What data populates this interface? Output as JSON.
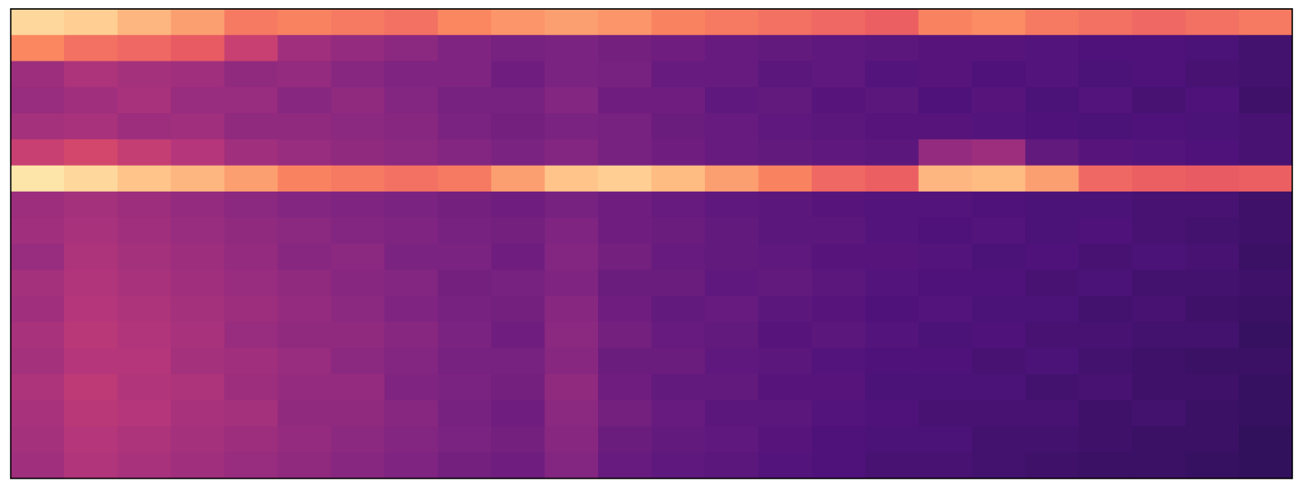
{
  "chart_data": {
    "type": "heatmap",
    "colormap": "magma",
    "zlim": [
      0,
      1
    ],
    "values": [
      [
        0.92,
        0.9,
        0.85,
        0.8,
        0.72,
        0.74,
        0.72,
        0.7,
        0.75,
        0.78,
        0.8,
        0.78,
        0.74,
        0.72,
        0.7,
        0.68,
        0.66,
        0.74,
        0.76,
        0.72,
        0.7,
        0.68,
        0.7,
        0.72
      ],
      [
        0.75,
        0.7,
        0.68,
        0.65,
        0.55,
        0.45,
        0.42,
        0.4,
        0.37,
        0.35,
        0.36,
        0.34,
        0.33,
        0.31,
        0.3,
        0.29,
        0.28,
        0.27,
        0.27,
        0.26,
        0.25,
        0.25,
        0.24,
        0.22
      ],
      [
        0.44,
        0.48,
        0.46,
        0.45,
        0.41,
        0.42,
        0.39,
        0.37,
        0.37,
        0.33,
        0.36,
        0.35,
        0.31,
        0.31,
        0.28,
        0.29,
        0.26,
        0.27,
        0.25,
        0.26,
        0.24,
        0.25,
        0.23,
        0.22
      ],
      [
        0.43,
        0.45,
        0.47,
        0.43,
        0.43,
        0.39,
        0.41,
        0.38,
        0.35,
        0.35,
        0.38,
        0.33,
        0.33,
        0.29,
        0.3,
        0.27,
        0.28,
        0.25,
        0.27,
        0.24,
        0.26,
        0.23,
        0.25,
        0.21
      ],
      [
        0.46,
        0.47,
        0.44,
        0.45,
        0.41,
        0.41,
        0.4,
        0.39,
        0.36,
        0.34,
        0.36,
        0.35,
        0.32,
        0.31,
        0.29,
        0.28,
        0.27,
        0.27,
        0.26,
        0.25,
        0.24,
        0.25,
        0.24,
        0.23
      ],
      [
        0.55,
        0.58,
        0.54,
        0.5,
        0.45,
        0.43,
        0.41,
        0.4,
        0.38,
        0.36,
        0.38,
        0.35,
        0.33,
        0.31,
        0.3,
        0.29,
        0.28,
        0.42,
        0.44,
        0.3,
        0.27,
        0.26,
        0.25,
        0.23
      ],
      [
        0.95,
        0.92,
        0.88,
        0.85,
        0.8,
        0.74,
        0.72,
        0.7,
        0.72,
        0.8,
        0.88,
        0.9,
        0.86,
        0.8,
        0.74,
        0.68,
        0.66,
        0.85,
        0.86,
        0.8,
        0.68,
        0.66,
        0.65,
        0.66
      ],
      [
        0.44,
        0.46,
        0.44,
        0.42,
        0.4,
        0.38,
        0.37,
        0.36,
        0.34,
        0.33,
        0.35,
        0.33,
        0.31,
        0.29,
        0.28,
        0.27,
        0.26,
        0.26,
        0.25,
        0.24,
        0.24,
        0.23,
        0.23,
        0.21
      ],
      [
        0.45,
        0.47,
        0.45,
        0.43,
        0.41,
        0.4,
        0.38,
        0.37,
        0.35,
        0.34,
        0.37,
        0.33,
        0.32,
        0.3,
        0.28,
        0.28,
        0.26,
        0.25,
        0.26,
        0.24,
        0.25,
        0.23,
        0.22,
        0.21
      ],
      [
        0.43,
        0.48,
        0.46,
        0.44,
        0.42,
        0.39,
        0.4,
        0.36,
        0.36,
        0.33,
        0.38,
        0.34,
        0.31,
        0.3,
        0.29,
        0.27,
        0.27,
        0.26,
        0.24,
        0.25,
        0.23,
        0.24,
        0.23,
        0.2
      ],
      [
        0.46,
        0.49,
        0.47,
        0.45,
        0.43,
        0.41,
        0.39,
        0.38,
        0.34,
        0.35,
        0.37,
        0.32,
        0.32,
        0.29,
        0.3,
        0.28,
        0.26,
        0.25,
        0.25,
        0.23,
        0.24,
        0.22,
        0.22,
        0.21
      ],
      [
        0.45,
        0.5,
        0.48,
        0.46,
        0.44,
        0.42,
        0.4,
        0.37,
        0.35,
        0.34,
        0.39,
        0.33,
        0.3,
        0.31,
        0.28,
        0.27,
        0.25,
        0.26,
        0.24,
        0.24,
        0.22,
        0.23,
        0.21,
        0.2
      ],
      [
        0.47,
        0.51,
        0.49,
        0.47,
        0.43,
        0.41,
        0.41,
        0.39,
        0.36,
        0.33,
        0.4,
        0.34,
        0.31,
        0.3,
        0.27,
        0.28,
        0.26,
        0.24,
        0.25,
        0.23,
        0.23,
        0.22,
        0.22,
        0.19
      ],
      [
        0.46,
        0.5,
        0.5,
        0.46,
        0.45,
        0.43,
        0.4,
        0.38,
        0.35,
        0.35,
        0.39,
        0.32,
        0.32,
        0.29,
        0.28,
        0.26,
        0.25,
        0.25,
        0.23,
        0.24,
        0.22,
        0.21,
        0.2,
        0.2
      ],
      [
        0.48,
        0.52,
        0.49,
        0.48,
        0.44,
        0.42,
        0.42,
        0.37,
        0.36,
        0.34,
        0.41,
        0.33,
        0.3,
        0.3,
        0.27,
        0.27,
        0.24,
        0.24,
        0.24,
        0.22,
        0.23,
        0.21,
        0.21,
        0.19
      ],
      [
        0.47,
        0.51,
        0.5,
        0.47,
        0.46,
        0.41,
        0.41,
        0.39,
        0.35,
        0.33,
        0.4,
        0.34,
        0.31,
        0.28,
        0.28,
        0.26,
        0.25,
        0.23,
        0.23,
        0.23,
        0.21,
        0.22,
        0.2,
        0.19
      ],
      [
        0.46,
        0.5,
        0.48,
        0.46,
        0.44,
        0.42,
        0.4,
        0.38,
        0.36,
        0.34,
        0.39,
        0.32,
        0.3,
        0.29,
        0.27,
        0.25,
        0.24,
        0.24,
        0.22,
        0.22,
        0.21,
        0.2,
        0.2,
        0.18
      ],
      [
        0.45,
        0.49,
        0.47,
        0.45,
        0.43,
        0.41,
        0.39,
        0.37,
        0.34,
        0.33,
        0.38,
        0.31,
        0.29,
        0.28,
        0.26,
        0.25,
        0.23,
        0.23,
        0.22,
        0.21,
        0.2,
        0.2,
        0.19,
        0.18
      ]
    ]
  }
}
